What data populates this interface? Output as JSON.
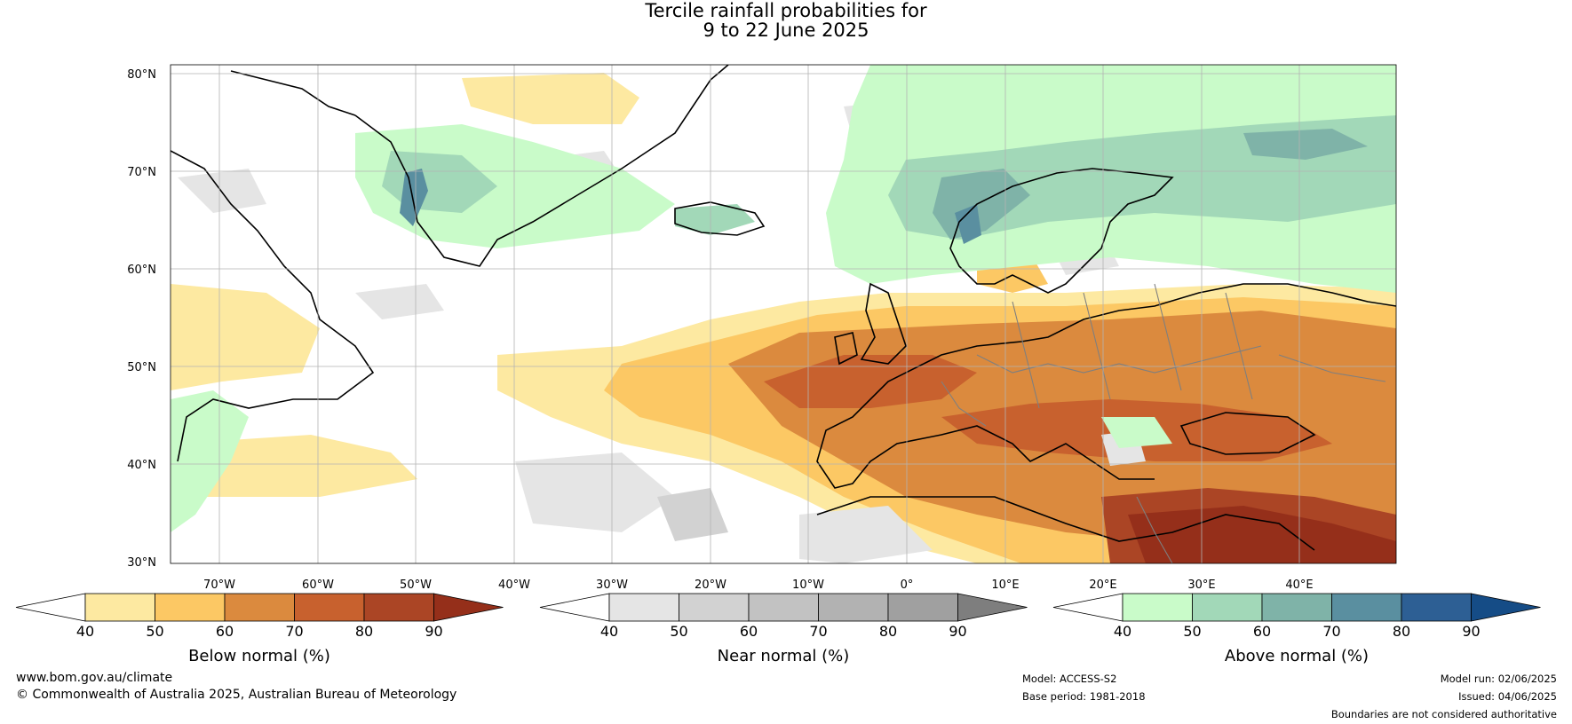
{
  "title": {
    "line1": "Tercile rainfall probabilities for",
    "line2": "9 to 22 June 2025"
  },
  "map": {
    "region": "North Atlantic and Europe",
    "lat_labels": [
      "80°N",
      "70°N",
      "60°N",
      "50°N",
      "40°N",
      "30°N"
    ],
    "lon_labels": [
      "70°W",
      "60°W",
      "50°W",
      "40°W",
      "30°W",
      "20°W",
      "10°W",
      "0°",
      "10°E",
      "20°E",
      "30°E",
      "40°E"
    ],
    "ocean_color": "#ffffff",
    "land_outline_color": "#000000",
    "border_color": "#7f7f7f"
  },
  "colorbars": [
    {
      "id": "below",
      "label": "Below normal (%)",
      "ticks": [
        "40",
        "50",
        "60",
        "70",
        "80",
        "90"
      ],
      "colors": [
        "#ffffff",
        "#fde9a1",
        "#fcc864",
        "#db8a3e",
        "#c8612e",
        "#ab4525",
        "#952f1a"
      ]
    },
    {
      "id": "near",
      "label": "Near normal (%)",
      "ticks": [
        "40",
        "50",
        "60",
        "70",
        "80",
        "90"
      ],
      "colors": [
        "#ffffff",
        "#e5e5e5",
        "#d2d2d2",
        "#c2c2c2",
        "#b2b2b2",
        "#a0a0a0",
        "#7e7e7e"
      ]
    },
    {
      "id": "above",
      "label": "Above normal (%)",
      "ticks": [
        "40",
        "50",
        "60",
        "70",
        "80",
        "90"
      ],
      "colors": [
        "#ffffff",
        "#c9fbc9",
        "#a2d8b8",
        "#7fb3a8",
        "#5a8fa0",
        "#2d5f94",
        "#154c86"
      ]
    }
  ],
  "footer": {
    "website": "www.bom.gov.au/climate",
    "copyright": "© Commonwealth of Australia 2025, Australian Bureau of Meteorology",
    "model": "Model: ACCESS-S2",
    "base_period": "Base period: 1981-2018",
    "model_run": "Model run: 02/06/2025",
    "issued": "Issued: 04/06/2025",
    "disclaimer": "Boundaries are not considered authoritative"
  }
}
